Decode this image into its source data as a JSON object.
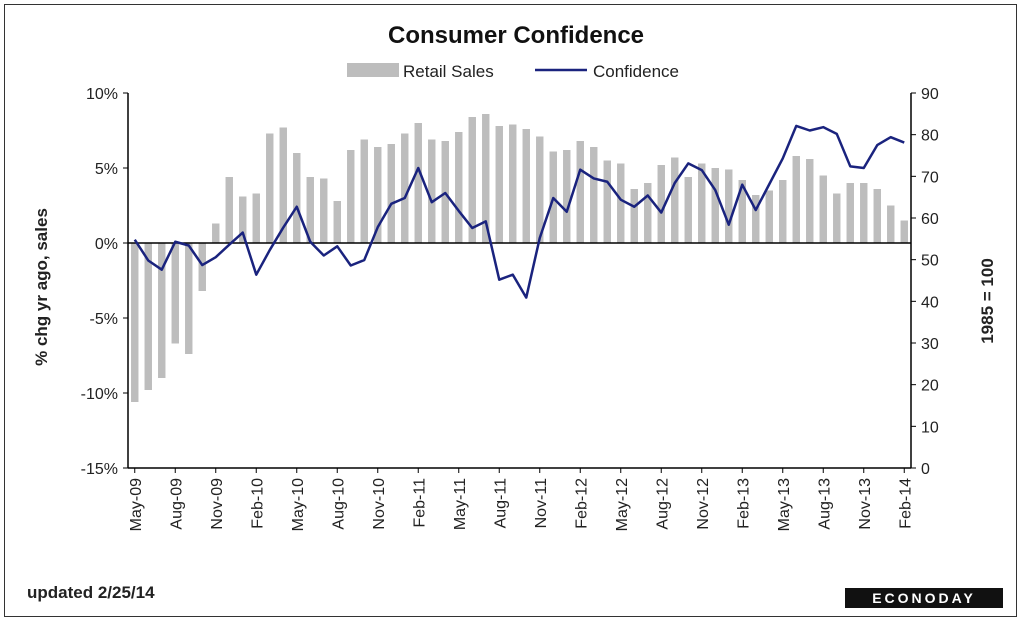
{
  "chart_data": {
    "type": "bar+line",
    "title": "Consumer Confidence",
    "categories": [
      "May-09",
      "Jun-09",
      "Jul-09",
      "Aug-09",
      "Sep-09",
      "Oct-09",
      "Nov-09",
      "Dec-09",
      "Jan-10",
      "Feb-10",
      "Mar-10",
      "Apr-10",
      "May-10",
      "Jun-10",
      "Jul-10",
      "Aug-10",
      "Sep-10",
      "Oct-10",
      "Nov-10",
      "Dec-10",
      "Jan-11",
      "Feb-11",
      "Mar-11",
      "Apr-11",
      "May-11",
      "Jun-11",
      "Jul-11",
      "Aug-11",
      "Sep-11",
      "Oct-11",
      "Nov-11",
      "Dec-11",
      "Jan-12",
      "Feb-12",
      "Mar-12",
      "Apr-12",
      "May-12",
      "Jun-12",
      "Jul-12",
      "Aug-12",
      "Sep-12",
      "Oct-12",
      "Nov-12",
      "Dec-12",
      "Jan-13",
      "Feb-13",
      "Mar-13",
      "Apr-13",
      "May-13",
      "Jun-13",
      "Jul-13",
      "Aug-13",
      "Sep-13",
      "Oct-13",
      "Nov-13",
      "Dec-13",
      "Jan-14",
      "Feb-14"
    ],
    "x_tick_labels": [
      "May-09",
      "Aug-09",
      "Nov-09",
      "Feb-10",
      "May-10",
      "Aug-10",
      "Nov-10",
      "Feb-11",
      "May-11",
      "Aug-11",
      "Nov-11",
      "Feb-12",
      "May-12",
      "Aug-12",
      "Nov-12",
      "Feb-13",
      "May-13",
      "Aug-13",
      "Nov-13",
      "Feb-14"
    ],
    "series": [
      {
        "name": "Retail Sales",
        "kind": "bar",
        "axis": "left",
        "color": "#bdbdbd",
        "values": [
          -10.6,
          -9.8,
          -9.0,
          -6.7,
          -7.4,
          -3.2,
          1.3,
          4.4,
          3.1,
          3.3,
          7.3,
          7.7,
          6.0,
          4.4,
          4.3,
          2.8,
          6.2,
          6.9,
          6.4,
          6.6,
          7.3,
          8.0,
          6.9,
          6.8,
          7.4,
          8.4,
          8.6,
          7.8,
          7.9,
          7.6,
          7.1,
          6.1,
          6.2,
          6.8,
          6.4,
          5.5,
          5.3,
          3.6,
          4.0,
          5.2,
          5.7,
          4.4,
          5.3,
          5.0,
          4.9,
          4.2,
          3.2,
          3.5,
          4.2,
          5.8,
          5.6,
          4.5,
          3.3,
          4.0,
          4.0,
          3.6,
          2.5,
          1.5
        ]
      },
      {
        "name": "Confidence",
        "kind": "line",
        "axis": "right",
        "color": "#1a237e",
        "values": [
          54.8,
          49.8,
          47.6,
          54.3,
          53.4,
          48.7,
          50.6,
          53.6,
          56.5,
          46.4,
          52.3,
          57.7,
          62.7,
          54.3,
          51.0,
          53.2,
          48.6,
          49.9,
          57.8,
          63.4,
          64.8,
          72.0,
          63.8,
          66.0,
          61.7,
          57.6,
          59.2,
          45.2,
          46.4,
          40.9,
          55.2,
          64.8,
          61.5,
          71.6,
          69.5,
          68.7,
          64.4,
          62.7,
          65.4,
          61.3,
          68.4,
          73.1,
          71.5,
          66.7,
          58.4,
          68.0,
          61.9,
          68.1,
          74.3,
          82.1,
          81.0,
          81.8,
          80.2,
          72.4,
          72.0,
          77.5,
          79.4,
          78.1
        ]
      }
    ],
    "left_axis": {
      "ylim": [
        -15,
        10
      ],
      "ticks": [
        10,
        5,
        0,
        -5,
        -10,
        -15
      ],
      "tick_labels": [
        "10%",
        "5%",
        "0%",
        "-5%",
        "-10%",
        "-15%"
      ],
      "label": "% chg yr ago, sales"
    },
    "right_axis": {
      "ylim": [
        0,
        90
      ],
      "ticks": [
        90,
        80,
        70,
        60,
        50,
        40,
        30,
        20,
        10,
        0
      ],
      "tick_labels": [
        "90",
        "80",
        "70",
        "60",
        "50",
        "40",
        "30",
        "20",
        "10",
        "0"
      ],
      "label": "1985 = 100"
    },
    "grid": false,
    "legend_placement": "top-center"
  },
  "footer": {
    "updated": "updated 2/25/14",
    "brand": "ECONODAY"
  }
}
